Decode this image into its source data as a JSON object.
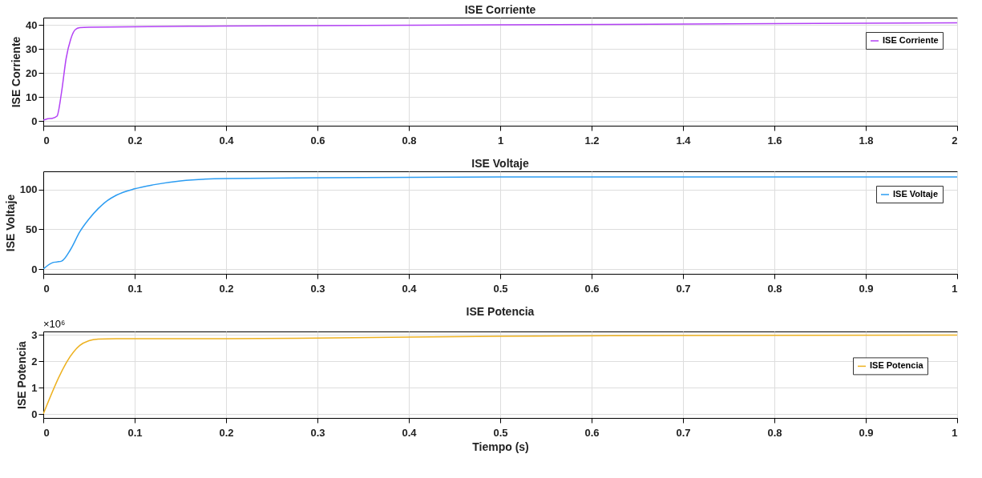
{
  "chart_data": [
    {
      "type": "line",
      "title": "ISE Corriente",
      "ylabel": "ISE Corriente",
      "x": [
        0,
        0.01,
        0.02,
        0.03,
        0.04,
        0.05,
        0.06,
        0.07,
        0.08,
        0.1,
        0.4,
        1,
        1.5,
        2
      ],
      "xlim": [
        0,
        2
      ],
      "xticks": [
        0,
        0.2,
        0.4,
        0.6,
        0.8,
        1,
        1.2,
        1.4,
        1.6,
        1.8,
        2
      ],
      "ylim": [
        -2,
        43
      ],
      "yticks": [
        0,
        10,
        20,
        30,
        40
      ],
      "grid": true,
      "legend": "top right",
      "series": [
        {
          "name": "ISE Corriente",
          "color": "#b342f5",
          "values": [
            0.3,
            0.9,
            1.1,
            2,
            12,
            26,
            34,
            38,
            38.8,
            39,
            39.5,
            40,
            40.4,
            40.8
          ]
        }
      ]
    },
    {
      "type": "line",
      "title": "ISE Voltaje",
      "ylabel": "ISE Voltaje",
      "x": [
        0,
        0.01,
        0.015,
        0.02,
        0.03,
        0.04,
        0.05,
        0.06,
        0.07,
        0.08,
        0.1,
        0.12,
        0.15,
        0.2,
        0.3,
        0.5,
        1
      ],
      "xlim": [
        0,
        1
      ],
      "xticks": [
        0,
        0.1,
        0.2,
        0.3,
        0.4,
        0.5,
        0.6,
        0.7,
        0.8,
        0.9,
        1
      ],
      "ylim": [
        -6,
        123
      ],
      "yticks": [
        0,
        50,
        100
      ],
      "grid": true,
      "legend": "top right",
      "series": [
        {
          "name": "ISE Voltaje",
          "color": "#2b9cf2",
          "values": [
            0,
            8,
            9,
            10,
            25,
            47,
            63,
            76,
            86,
            93,
            101,
            106,
            111,
            114,
            115,
            116,
            116
          ]
        }
      ]
    },
    {
      "type": "line",
      "title": "ISE Potencia",
      "ylabel": "ISE Potencia",
      "xlabel": "Tiempo (s)",
      "annotations": [
        "×10⁶"
      ],
      "x": [
        0,
        0.033,
        0.04,
        0.05,
        0.06,
        0.08,
        0.2,
        0.3,
        0.5,
        0.7,
        1
      ],
      "xlim": [
        0,
        1
      ],
      "xticks": [
        0,
        0.1,
        0.2,
        0.3,
        0.4,
        0.5,
        0.6,
        0.7,
        0.8,
        0.9,
        1
      ],
      "ylim": [
        -0.15,
        3.13
      ],
      "yticks": [
        0,
        1,
        2,
        3
      ],
      "grid": true,
      "legend": "right",
      "series": [
        {
          "name": "ISE Potencia",
          "color": "#edb120",
          "values": [
            0,
            2.35,
            2.6,
            2.78,
            2.84,
            2.86,
            2.86,
            2.88,
            2.95,
            2.98,
            2.99
          ]
        }
      ]
    }
  ]
}
